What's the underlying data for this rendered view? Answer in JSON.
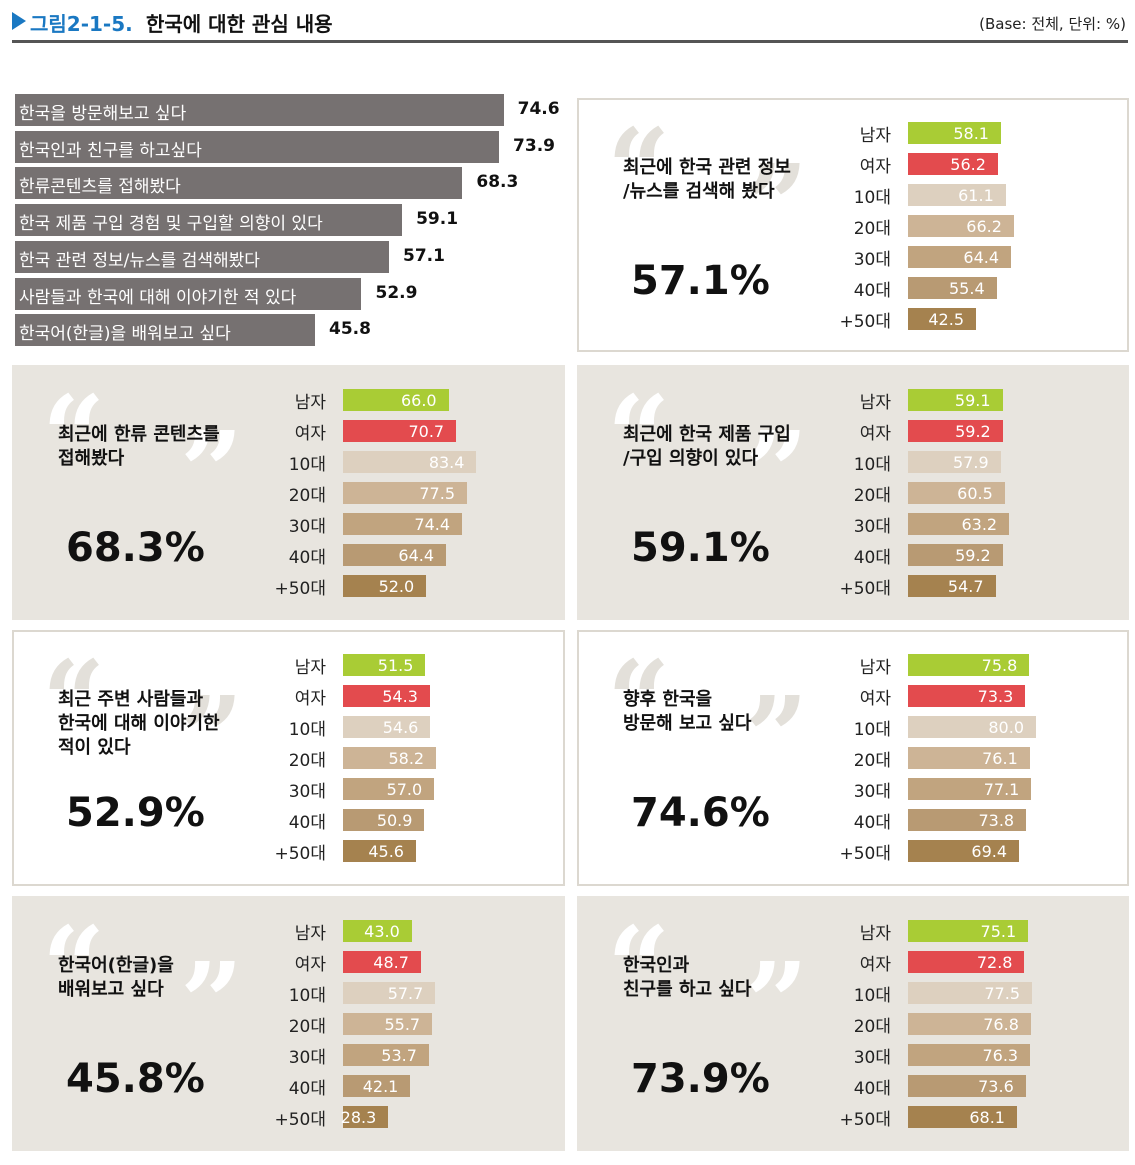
{
  "header": {
    "figure_number": "그림2-1-5.",
    "title": "한국에 대한 관심 내용",
    "base_note": "(Base: 전체, 단위: %)"
  },
  "colors": {
    "summary_bar": "#767171",
    "male": "#a9cc35",
    "female": "#e34b4e",
    "age_10s": "#ddd0bf",
    "age_20s": "#cdb496",
    "age_30s": "#c1a47f",
    "age_40s": "#b89a73",
    "age_50plus": "#a5824f"
  },
  "chart_data": [
    {
      "type": "bar",
      "orientation": "horizontal",
      "categories": [
        "한국을 방문해보고 싶다",
        "한국인과 친구를 하고싶다",
        "한류콘텐츠를 접해봤다",
        "한국 제품 구입 경험 및 구입할 의향이 있다",
        "한국 관련 정보/뉴스를 검색해봤다",
        "사람들과 한국에 대해 이야기한 적 있다",
        "한국어(한글)을 배워보고 싶다"
      ],
      "values": [
        74.6,
        73.9,
        68.3,
        59.1,
        57.1,
        52.9,
        45.8
      ],
      "value_labels": [
        "74.6",
        "73.9",
        "68.3",
        "59.1",
        "57.1",
        "52.9",
        "45.8"
      ]
    },
    {
      "type": "bar",
      "orientation": "horizontal",
      "title": "최근에 한국 관련 정보\n/뉴스를 검색해 봤다",
      "total": "57.1%",
      "categories": [
        "남자",
        "여자",
        "10대",
        "20대",
        "30대",
        "40대",
        "+50대"
      ],
      "values": [
        58.1,
        56.2,
        61.1,
        66.2,
        64.4,
        55.4,
        42.5
      ],
      "value_labels": [
        "58.1",
        "56.2",
        "61.1",
        "66.2",
        "64.4",
        "55.4",
        "42.5"
      ]
    },
    {
      "type": "bar",
      "orientation": "horizontal",
      "title": "최근에 한류 콘텐츠를\n접해봤다",
      "total": "68.3%",
      "categories": [
        "남자",
        "여자",
        "10대",
        "20대",
        "30대",
        "40대",
        "+50대"
      ],
      "values": [
        66.0,
        70.7,
        83.4,
        77.5,
        74.4,
        64.4,
        52.0
      ],
      "value_labels": [
        "66.0",
        "70.7",
        "83.4",
        "77.5",
        "74.4",
        "64.4",
        "52.0"
      ]
    },
    {
      "type": "bar",
      "orientation": "horizontal",
      "title": "최근에 한국 제품 구입\n/구입 의향이 있다",
      "total": "59.1%",
      "categories": [
        "남자",
        "여자",
        "10대",
        "20대",
        "30대",
        "40대",
        "+50대"
      ],
      "values": [
        59.1,
        59.2,
        57.9,
        60.5,
        63.2,
        59.2,
        54.7
      ],
      "value_labels": [
        "59.1",
        "59.2",
        "57.9",
        "60.5",
        "63.2",
        "59.2",
        "54.7"
      ]
    },
    {
      "type": "bar",
      "orientation": "horizontal",
      "title": "최근 주변 사람들과\n한국에 대해 이야기한\n적이 있다",
      "total": "52.9%",
      "categories": [
        "남자",
        "여자",
        "10대",
        "20대",
        "30대",
        "40대",
        "+50대"
      ],
      "values": [
        51.5,
        54.3,
        54.6,
        58.2,
        57.0,
        50.9,
        45.6
      ],
      "value_labels": [
        "51.5",
        "54.3",
        "54.6",
        "58.2",
        "57.0",
        "50.9",
        "45.6"
      ]
    },
    {
      "type": "bar",
      "orientation": "horizontal",
      "title": "향후 한국을\n방문해 보고 싶다",
      "total": "74.6%",
      "categories": [
        "남자",
        "여자",
        "10대",
        "20대",
        "30대",
        "40대",
        "+50대"
      ],
      "values": [
        75.8,
        73.3,
        80.0,
        76.1,
        77.1,
        73.8,
        69.4
      ],
      "value_labels": [
        "75.8",
        "73.3",
        "80.0",
        "76.1",
        "77.1",
        "73.8",
        "69.4"
      ]
    },
    {
      "type": "bar",
      "orientation": "horizontal",
      "title": "한국어(한글)을\n배워보고 싶다",
      "total": "45.8%",
      "categories": [
        "남자",
        "여자",
        "10대",
        "20대",
        "30대",
        "40대",
        "+50대"
      ],
      "values": [
        43.0,
        48.7,
        57.7,
        55.7,
        53.7,
        42.1,
        28.3
      ],
      "value_labels": [
        "43.0",
        "48.7",
        "57.7",
        "55.7",
        "53.7",
        "42.1",
        "28.3"
      ]
    },
    {
      "type": "bar",
      "orientation": "horizontal",
      "title": "한국인과\n친구를 하고 싶다",
      "total": "73.9%",
      "categories": [
        "남자",
        "여자",
        "10대",
        "20대",
        "30대",
        "40대",
        "+50대"
      ],
      "values": [
        75.1,
        72.8,
        77.5,
        76.8,
        76.3,
        73.6,
        68.1
      ],
      "value_labels": [
        "75.1",
        "72.8",
        "77.5",
        "76.8",
        "76.3",
        "73.6",
        "68.1"
      ]
    }
  ]
}
